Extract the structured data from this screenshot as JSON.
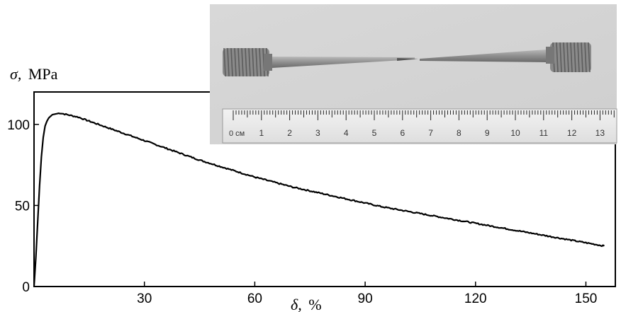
{
  "chart_data": {
    "type": "line",
    "ylabel_symbol": "σ,",
    "ylabel_unit": "MPa",
    "xlabel_symbol": "δ,",
    "xlabel_unit": "%",
    "xlim": [
      0,
      158
    ],
    "ylim": [
      0,
      120
    ],
    "x_ticks": [
      30,
      60,
      90,
      120,
      150
    ],
    "y_ticks": [
      0,
      50,
      100
    ],
    "grid": false,
    "series": [
      {
        "x": [
          0,
          0.5,
          1,
          1.5,
          2,
          2.5,
          3,
          3.5,
          4,
          5,
          6,
          7,
          8,
          9,
          10,
          12,
          15,
          20,
          25,
          30,
          35,
          40,
          45,
          50,
          55,
          60,
          65,
          70,
          75,
          80,
          85,
          90,
          95,
          100,
          105,
          110,
          115,
          120,
          125,
          130,
          135,
          140,
          145,
          150,
          155
        ],
        "values": [
          0,
          18,
          40,
          62,
          80,
          92,
          99,
          102,
          104,
          106,
          106.5,
          107,
          106.5,
          106,
          105.5,
          104.5,
          102,
          98,
          94,
          90,
          86,
          82,
          78,
          74.5,
          71,
          67.5,
          64.5,
          61.5,
          59,
          56.5,
          54,
          51.5,
          49,
          47,
          45,
          43,
          41,
          39,
          37,
          35,
          33,
          31,
          29,
          27,
          25
        ]
      }
    ]
  },
  "photo": {
    "ruler_unit": "0 см",
    "ruler_numbers": [
      "1",
      "2",
      "3",
      "4",
      "5",
      "6",
      "7",
      "8",
      "9",
      "10",
      "11",
      "12",
      "13"
    ]
  }
}
